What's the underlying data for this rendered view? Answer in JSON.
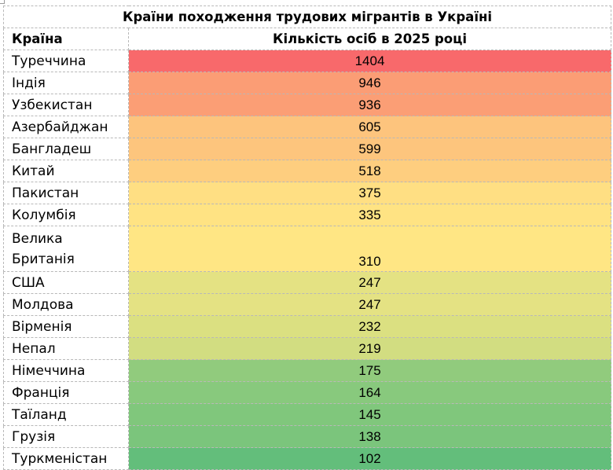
{
  "table": {
    "title": "Країни походження трудових мігрантів в Україні",
    "headers": {
      "country": "Країна",
      "count": "Кількість осіб в 2025 році"
    },
    "rows": [
      {
        "country": "Туреччина",
        "value": "1404",
        "color": "#f8696b"
      },
      {
        "country": "Індія",
        "value": "946",
        "color": "#fb9d75"
      },
      {
        "country": "Узбекистан",
        "value": "936",
        "color": "#fb9e75"
      },
      {
        "country": "Азербайджан",
        "value": "605",
        "color": "#fdc47d"
      },
      {
        "country": "Бангладеш",
        "value": "599",
        "color": "#fdc57d"
      },
      {
        "country": "Китай",
        "value": "518",
        "color": "#fece7f"
      },
      {
        "country": "Пакистан",
        "value": "375",
        "color": "#ffdf83"
      },
      {
        "country": "Колумбія",
        "value": "335",
        "color": "#ffe383"
      },
      {
        "country": "Велика Британія",
        "value": "310",
        "color": "#ffe684"
      },
      {
        "country": "США",
        "value": "247",
        "color": "#e4e283"
      },
      {
        "country": "Молдова",
        "value": "247",
        "color": "#e4e283"
      },
      {
        "country": "Вірменія",
        "value": "232",
        "color": "#dbe081"
      },
      {
        "country": "Непал",
        "value": "219",
        "color": "#d2dd81"
      },
      {
        "country": "Німеччина",
        "value": "175",
        "color": "#91cb7d"
      },
      {
        "country": "Франція",
        "value": "164",
        "color": "#88c97d"
      },
      {
        "country": "Таїланд",
        "value": "145",
        "color": "#80c77c"
      },
      {
        "country": "Грузія",
        "value": "138",
        "color": "#7bc57c"
      },
      {
        "country": "Туркменістан",
        "value": "102",
        "color": "#63be7b"
      }
    ]
  }
}
